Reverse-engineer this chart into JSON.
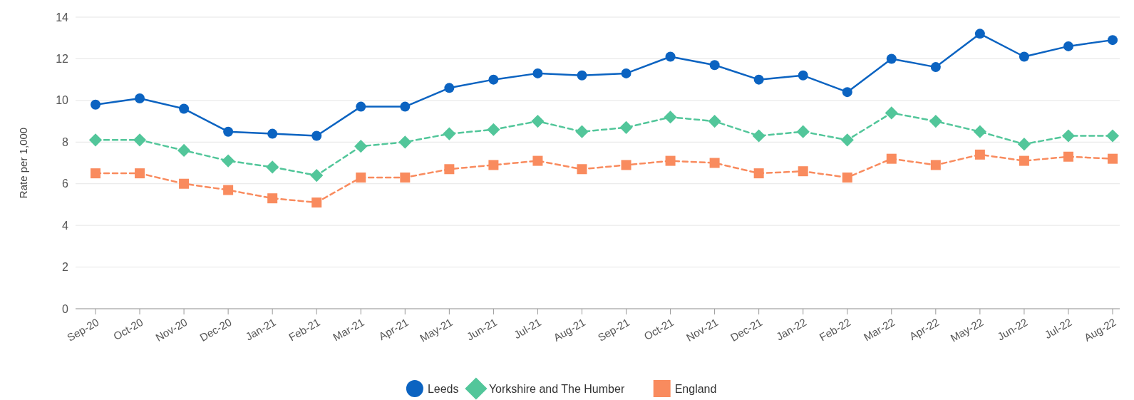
{
  "chart_data": {
    "type": "line",
    "ylabel": "Rate per 1,000",
    "categories": [
      "Sep-20",
      "Oct-20",
      "Nov-20",
      "Dec-20",
      "Jan-21",
      "Feb-21",
      "Mar-21",
      "Apr-21",
      "May-21",
      "Jun-21",
      "Jul-21",
      "Aug-21",
      "Sep-21",
      "Oct-21",
      "Nov-21",
      "Dec-21",
      "Jan-22",
      "Feb-22",
      "Mar-22",
      "Apr-22",
      "May-22",
      "Jun-22",
      "Jul-22",
      "Aug-22"
    ],
    "series": [
      {
        "name": "Leeds",
        "color": "#0b63c1",
        "marker": "circle",
        "line_style": "solid",
        "values": [
          9.8,
          10.1,
          9.6,
          8.5,
          8.4,
          8.3,
          9.7,
          9.7,
          10.6,
          11.0,
          11.3,
          11.2,
          11.3,
          12.1,
          11.7,
          11.0,
          11.2,
          10.4,
          12.0,
          11.6,
          13.2,
          12.1,
          12.6,
          12.9
        ]
      },
      {
        "name": "Yorkshire and The Humber",
        "color": "#52c69a",
        "marker": "diamond",
        "line_style": "dashed",
        "values": [
          8.1,
          8.1,
          7.6,
          7.1,
          6.8,
          6.4,
          7.8,
          8.0,
          8.4,
          8.6,
          9.0,
          8.5,
          8.7,
          9.2,
          9.0,
          8.3,
          8.5,
          8.1,
          9.4,
          9.0,
          8.5,
          7.9,
          8.3,
          8.3
        ]
      },
      {
        "name": "England",
        "color": "#f98b5e",
        "marker": "square",
        "line_style": "dashed",
        "values": [
          6.5,
          6.5,
          6.0,
          5.7,
          5.3,
          5.1,
          6.3,
          6.3,
          6.7,
          6.9,
          7.1,
          6.7,
          6.9,
          7.1,
          7.0,
          6.5,
          6.6,
          6.3,
          7.2,
          6.9,
          7.4,
          7.1,
          7.3,
          7.2
        ]
      }
    ],
    "ylim": [
      0,
      14
    ],
    "yticks": [
      0,
      2,
      4,
      6,
      8,
      10,
      12,
      14
    ],
    "grid": "y",
    "legend": "bottom"
  }
}
